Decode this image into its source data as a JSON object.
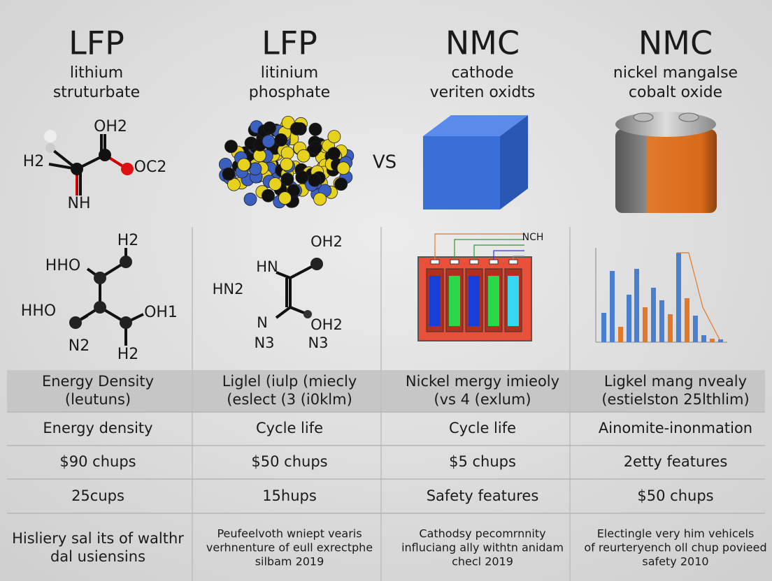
{
  "columns": [
    {
      "title": "LFP",
      "subtitle": [
        "lithium",
        "struturbate"
      ]
    },
    {
      "title": "LFP",
      "subtitle": [
        "litinium",
        "phosphate"
      ]
    },
    {
      "title": "NMC",
      "subtitle": [
        "cathode",
        "veriten oxidts"
      ]
    },
    {
      "title": "NMC",
      "subtitle": [
        "nickel mangalse",
        "cobalt oxide"
      ]
    }
  ],
  "vs": "VS",
  "molecules": [
    {
      "labels": [
        "H2",
        "OH2",
        "OC2",
        "NH"
      ]
    },
    {
      "labels": [
        "H2",
        "HHO",
        "HHO",
        "OH1",
        "N2",
        "H2"
      ]
    },
    {
      "labels": [
        "OH2",
        "HN",
        "HN2",
        "N",
        "OH2",
        "N3",
        "N3"
      ]
    },
    {
      "labels": [
        "NCH"
      ]
    }
  ],
  "table": {
    "rows": [
      [
        [
          "Energy Density",
          "(leutuns)"
        ],
        [
          "Liglel (iulp (miecly",
          "(eslect (3 (i0klm)"
        ],
        [
          "Nickel mergy imieoly",
          "(vs  4 (exlum)"
        ],
        [
          "Ligkel mang nvealy",
          "(estielston 25lthlim)"
        ]
      ],
      [
        [
          "Energy density"
        ],
        [
          "Cycle life"
        ],
        [
          "Cycle life"
        ],
        [
          "Ainomite-inonmation"
        ]
      ],
      [
        [
          "$90 chups"
        ],
        [
          "$50 chups"
        ],
        [
          "$5 chups"
        ],
        [
          "2etty features"
        ]
      ],
      [
        [
          "25cups"
        ],
        [
          "15hups"
        ],
        [
          "Safety features"
        ],
        [
          "$50 chups"
        ]
      ],
      [
        [
          "Hisliery sal its of walthr",
          "dal usiensins"
        ],
        [
          "Peufeelvoth wniept vearis",
          "verhnenture of eull exrectphe",
          "silbam 2019"
        ],
        [
          "Cathodsy pecomrnnity",
          "influciang ally withtn anidam",
          "checl 2019"
        ],
        [
          "Electingle very him vehicels",
          "of reurteryench oll chup povieed",
          "safety 2010"
        ]
      ]
    ]
  }
}
